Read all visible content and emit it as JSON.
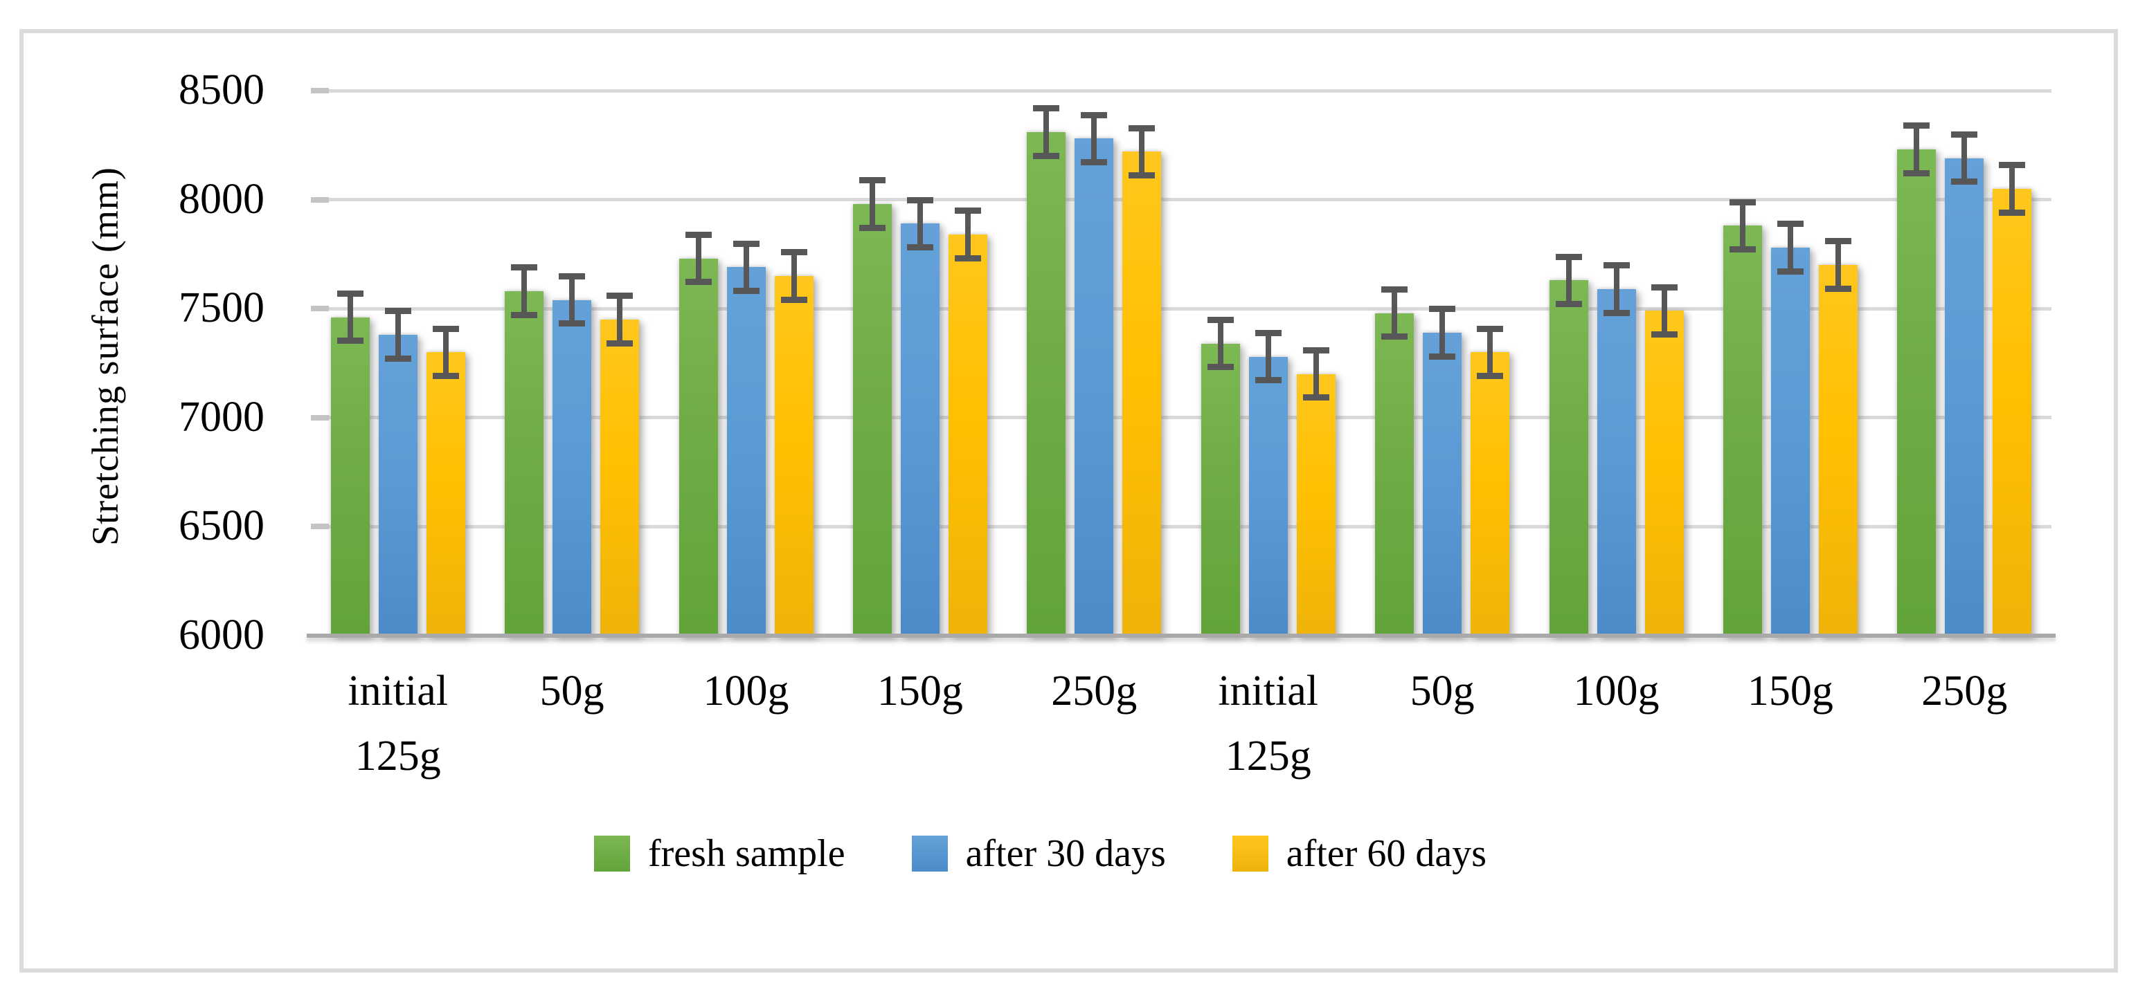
{
  "figure": {
    "border_color": "#DBDBDB",
    "background_color": "#FFFFFF"
  },
  "chart_data": {
    "type": "bar",
    "title": "",
    "xlabel": "",
    "ylabel": "Stretching surface (mm)",
    "ylim": [
      6000,
      8500
    ],
    "yticks": [
      6000,
      6500,
      7000,
      7500,
      8000,
      8500
    ],
    "grid": true,
    "legend_position": "bottom",
    "categories": [
      "initial 125g",
      "50g",
      "100g",
      "150g",
      "250g",
      "initial 125g",
      "50g",
      "100g",
      "150g",
      "250g"
    ],
    "series": [
      {
        "name": "fresh sample",
        "color": "#6FAC46",
        "gradient_top": "#7CB853",
        "gradient_bottom": "#61A439",
        "values": [
          7460,
          7580,
          7730,
          7980,
          8310,
          7340,
          7480,
          7630,
          7880,
          8230
        ],
        "error": 110
      },
      {
        "name": "after 30 days",
        "color": "#5B9BD5",
        "gradient_top": "#64A1D8",
        "gradient_bottom": "#4B8BC8",
        "values": [
          7380,
          7540,
          7690,
          7890,
          8280,
          7280,
          7390,
          7590,
          7780,
          8190
        ],
        "error": 110
      },
      {
        "name": "after 60 days",
        "color": "#FFC000",
        "gradient_top": "#FFC71E",
        "gradient_bottom": "#EFB30A",
        "values": [
          7300,
          7450,
          7650,
          7840,
          8220,
          7200,
          7300,
          7490,
          7700,
          8050
        ],
        "error": 110
      }
    ],
    "error_bar_color": "#575757",
    "gridline_color": "#D9D9D9",
    "axis_line_color": "#A9A9A9",
    "tick_color": "#C4C4C4"
  }
}
